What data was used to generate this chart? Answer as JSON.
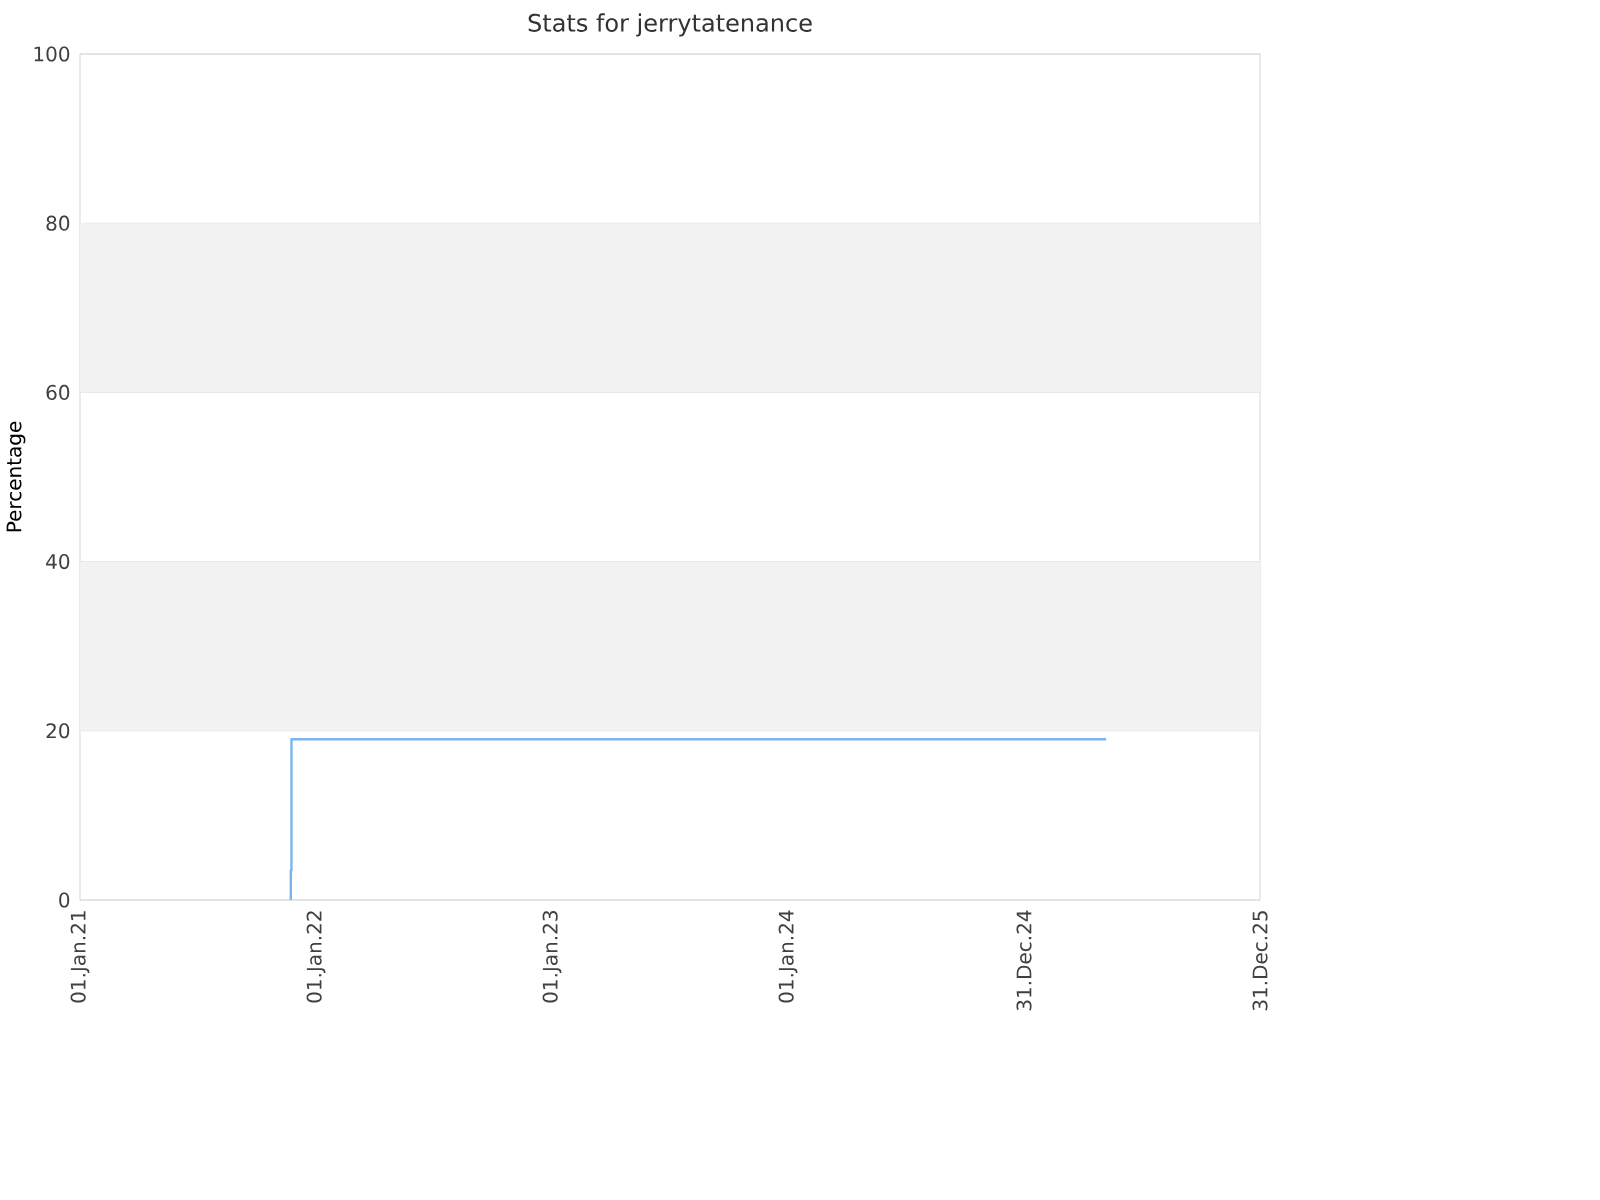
{
  "chart_data": {
    "type": "step",
    "title": "Stats for jerrytatenance",
    "ylabel": "Percentage",
    "series": [
      {
        "color": "#7cb5ec",
        "x": [
          "2021-11-22",
          "2021-11-23",
          "2021-11-24",
          "2025-05-07"
        ],
        "values": [
          0,
          3.5,
          19,
          19
        ]
      }
    ],
    "xlim": [
      "2021-01-01",
      "2025-12-31"
    ],
    "xticks": [
      {
        "value": "2021-01-01",
        "label": "01.Jan.21"
      },
      {
        "value": "2022-01-01",
        "label": "01.Jan.22"
      },
      {
        "value": "2023-01-01",
        "label": "01.Jan.23"
      },
      {
        "value": "2024-01-01",
        "label": "01.Jan.24"
      },
      {
        "value": "2024-12-31",
        "label": "31.Dec.24"
      },
      {
        "value": "2025-12-31",
        "label": "31.Dec.25"
      }
    ],
    "ylim": [
      0,
      100
    ],
    "yticks": [
      0,
      20,
      40,
      60,
      80,
      100
    ],
    "bands": [
      {
        "axis": "y",
        "from": 20,
        "to": 40,
        "color": "#f2f2f2"
      },
      {
        "axis": "y",
        "from": 60,
        "to": 80,
        "color": "#f2f2f2"
      }
    ],
    "grid": "y"
  }
}
